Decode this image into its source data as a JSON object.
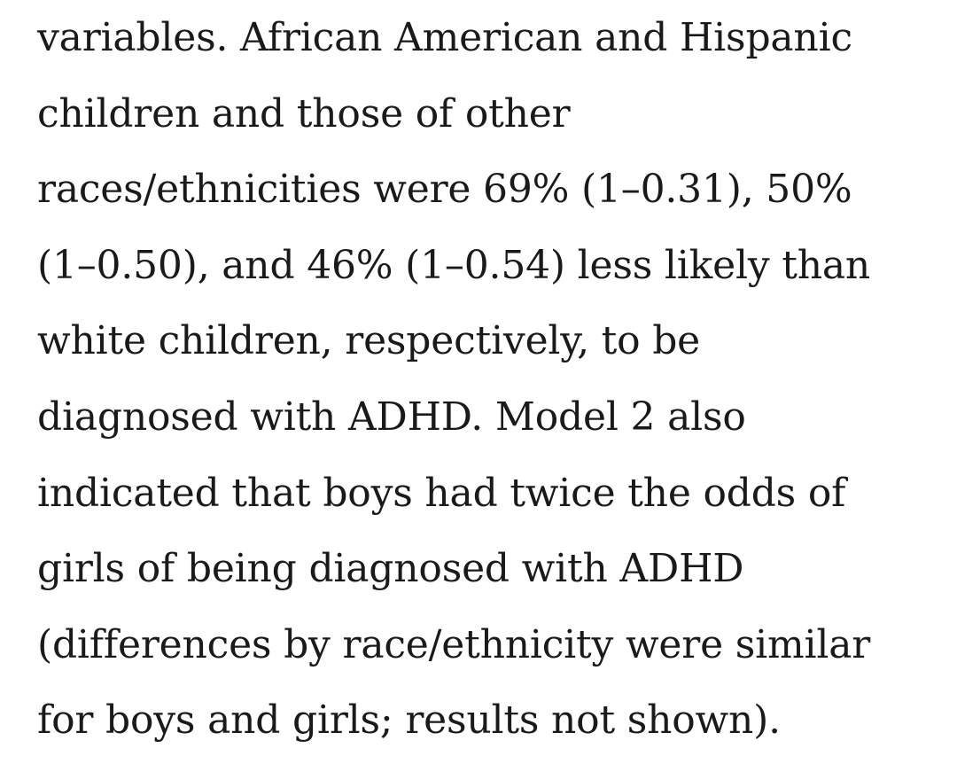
{
  "article": {
    "lines": [
      "variables. African American and Hispanic",
      "children and those of other",
      "races/ethnicities were 69% (1–0.31), 50%",
      "(1–0.50), and 46% (1–0.54) less likely than",
      "white children, respectively, to be",
      "diagnosed with ADHD. Model 2 also",
      "indicated that boys had twice the odds of",
      "girls of being diagnosed with ADHD",
      "(differences by race/ethnicity were similar",
      "for boys and girls; results not shown)."
    ]
  }
}
